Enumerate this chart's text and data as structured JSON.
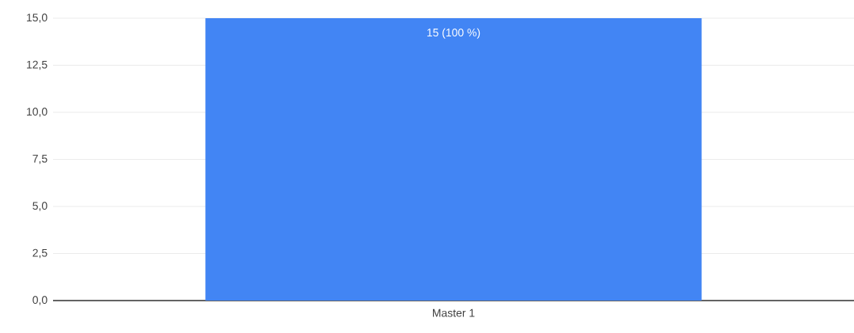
{
  "chart_data": {
    "type": "bar",
    "categories": [
      "Master 1"
    ],
    "values": [
      15
    ],
    "value_labels": [
      "15 (100 %)"
    ],
    "color": "#4285f4",
    "ylim": [
      0,
      15
    ],
    "yticks": [
      {
        "value": 0,
        "label": "0,0"
      },
      {
        "value": 2.5,
        "label": "2,5"
      },
      {
        "value": 5,
        "label": "5,0"
      },
      {
        "value": 7.5,
        "label": "7,5"
      },
      {
        "value": 10,
        "label": "10,0"
      },
      {
        "value": 12.5,
        "label": "12,5"
      },
      {
        "value": 15,
        "label": "15,0"
      }
    ],
    "grid": "y"
  }
}
